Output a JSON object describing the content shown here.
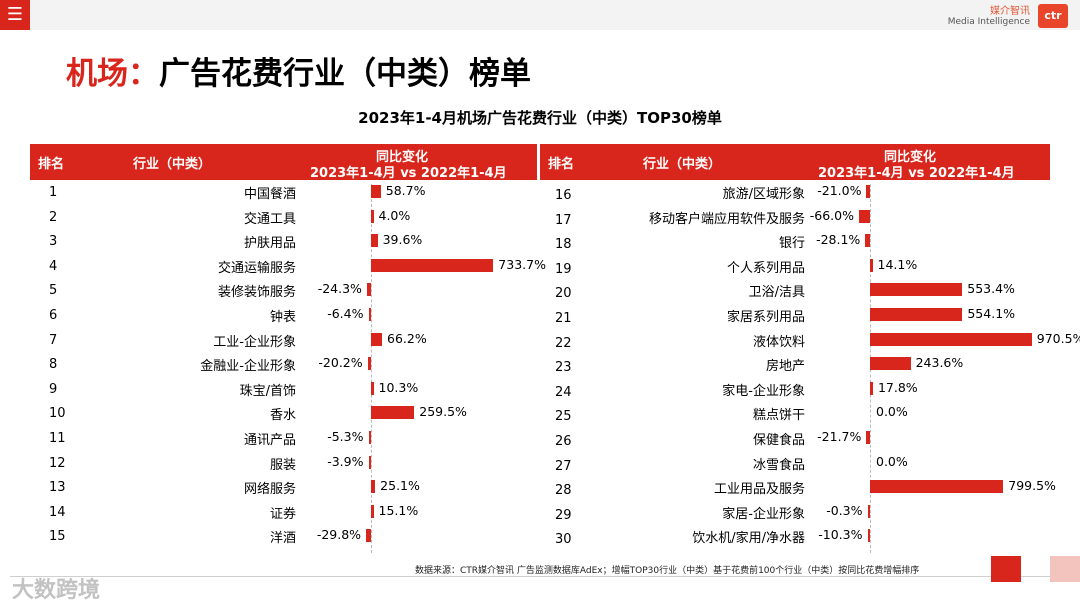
{
  "top_bar": {
    "menu_icon": "hamburger-menu-icon",
    "brand_cn": "媒介智讯",
    "brand_en": "Media Intelligence",
    "logo_text": "ctr"
  },
  "title": {
    "accent": "机场：",
    "main": "广告花费行业（中类）榜单"
  },
  "colors": {
    "accent": "#d9261c",
    "pink": "#f3c4be"
  },
  "chart_data": {
    "type": "bar",
    "title": "2023年1-4月机场广告花费行业（中类）TOP30榜单",
    "columns": {
      "rank": "排名",
      "industry": "行业（中类）",
      "change_line1": "同比变化",
      "change_line2": "2023年1-4月 vs 2022年1-4月"
    },
    "unit": "%",
    "left": [
      {
        "rank": "1",
        "name": "中国餐酒",
        "value": 58.7,
        "label": "58.7%"
      },
      {
        "rank": "2",
        "name": "交通工具",
        "value": 4.0,
        "label": "4.0%"
      },
      {
        "rank": "3",
        "name": "护肤用品",
        "value": 39.6,
        "label": "39.6%"
      },
      {
        "rank": "4",
        "name": "交通运输服务",
        "value": 733.7,
        "label": "733.7%"
      },
      {
        "rank": "5",
        "name": "装修装饰服务",
        "value": -24.3,
        "label": "-24.3%"
      },
      {
        "rank": "6",
        "name": "钟表",
        "value": -6.4,
        "label": "-6.4%"
      },
      {
        "rank": "7",
        "name": "工业-企业形象",
        "value": 66.2,
        "label": "66.2%"
      },
      {
        "rank": "8",
        "name": "金融业-企业形象",
        "value": -20.2,
        "label": "-20.2%"
      },
      {
        "rank": "9",
        "name": "珠宝/首饰",
        "value": 10.3,
        "label": "10.3%"
      },
      {
        "rank": "10",
        "name": "香水",
        "value": 259.5,
        "label": "259.5%"
      },
      {
        "rank": "11",
        "name": "通讯产品",
        "value": -5.3,
        "label": "-5.3%"
      },
      {
        "rank": "12",
        "name": "服装",
        "value": -3.9,
        "label": "-3.9%"
      },
      {
        "rank": "13",
        "name": "网络服务",
        "value": 25.1,
        "label": "25.1%"
      },
      {
        "rank": "14",
        "name": "证券",
        "value": 15.1,
        "label": "15.1%"
      },
      {
        "rank": "15",
        "name": "洋酒",
        "value": -29.8,
        "label": "-29.8%"
      }
    ],
    "right": [
      {
        "rank": "16",
        "name": "旅游/区域形象",
        "value": -21.0,
        "label": "-21.0%"
      },
      {
        "rank": "17",
        "name": "移动客户端应用软件及服务",
        "value": -66.0,
        "label": "-66.0%"
      },
      {
        "rank": "18",
        "name": "银行",
        "value": -28.1,
        "label": "-28.1%"
      },
      {
        "rank": "19",
        "name": "个人系列用品",
        "value": 14.1,
        "label": "14.1%"
      },
      {
        "rank": "20",
        "name": "卫浴/洁具",
        "value": 553.4,
        "label": "553.4%"
      },
      {
        "rank": "21",
        "name": "家居系列用品",
        "value": 554.1,
        "label": "554.1%"
      },
      {
        "rank": "22",
        "name": "液体饮料",
        "value": 970.5,
        "label": "970.5%"
      },
      {
        "rank": "23",
        "name": "房地产",
        "value": 243.6,
        "label": "243.6%"
      },
      {
        "rank": "24",
        "name": "家电-企业形象",
        "value": 17.8,
        "label": "17.8%"
      },
      {
        "rank": "25",
        "name": "糕点饼干",
        "value": 0.0,
        "label": "0.0%"
      },
      {
        "rank": "26",
        "name": "保健食品",
        "value": -21.7,
        "label": "-21.7%"
      },
      {
        "rank": "27",
        "name": "冰雪食品",
        "value": 0.0,
        "label": "0.0%"
      },
      {
        "rank": "28",
        "name": "工业用品及服务",
        "value": 799.5,
        "label": "799.5%"
      },
      {
        "rank": "29",
        "name": "家居-企业形象",
        "value": -0.3,
        "label": "-0.3%"
      },
      {
        "rank": "30",
        "name": "饮水机/家用/净水器",
        "value": -10.3,
        "label": "-10.3%"
      }
    ]
  },
  "footer": {
    "source": "数据来源：CTR媒介智讯 广告监测数据库AdEx；增幅TOP30行业（中类）基于花费前100个行业（中类）按同比花费增幅排序",
    "watermark": "大数跨境"
  }
}
